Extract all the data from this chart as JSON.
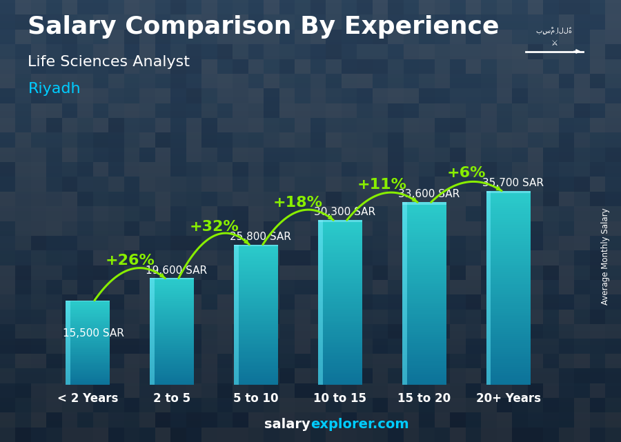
{
  "title": "Salary Comparison By Experience",
  "subtitle": "Life Sciences Analyst",
  "city": "Riyadh",
  "categories": [
    "< 2 Years",
    "2 to 5",
    "5 to 10",
    "10 to 15",
    "15 to 20",
    "20+ Years"
  ],
  "values": [
    15500,
    19600,
    25800,
    30300,
    33600,
    35700
  ],
  "labels": [
    "15,500 SAR",
    "19,600 SAR",
    "25,800 SAR",
    "30,300 SAR",
    "33,600 SAR",
    "35,700 SAR"
  ],
  "pct_changes": [
    "+26%",
    "+32%",
    "+18%",
    "+11%",
    "+6%"
  ],
  "bar_color_main": "#2bb8d4",
  "bar_color_dark": "#1a7fa0",
  "bar_color_light": "#5dd8ef",
  "bg_color_top": "#2a3a4a",
  "bg_color_bottom": "#1a2535",
  "title_color": "#ffffff",
  "subtitle_color": "#ffffff",
  "city_color": "#00ccff",
  "label_color": "#ffffff",
  "pct_color": "#88ee00",
  "arrow_color": "#88ee00",
  "ylabel": "Average Monthly Salary",
  "footer_salary_color": "#ffffff",
  "footer_explorer_color": "#00ccff",
  "ylim": [
    0,
    44000
  ],
  "bar_width": 0.52,
  "label_fontsize": 11,
  "pct_fontsize": 16,
  "title_fontsize": 26,
  "subtitle_fontsize": 16,
  "city_fontsize": 16,
  "xtick_fontsize": 12,
  "footer_fontsize": 14
}
